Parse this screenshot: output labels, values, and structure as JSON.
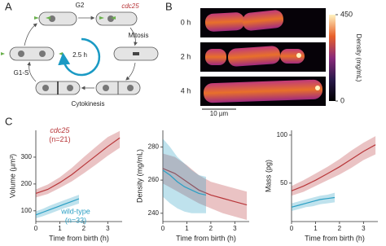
{
  "panel_labels": [
    "A",
    "B",
    "C"
  ],
  "cycle_diagram": {
    "g2": "G2",
    "gene": "cdc25",
    "mitosis": "Mitosis",
    "period": "2.5 h",
    "g1s": "G1-S",
    "cytokinesis": "Cytokinesis"
  },
  "images": {
    "times": [
      "0 h",
      "2 h",
      "4 h"
    ],
    "scale_bar": "10 µm",
    "colorbar": {
      "label": "Density (mg/mL)",
      "lim": [
        0,
        450
      ],
      "ticks": [
        0,
        450
      ]
    }
  },
  "chart_data": [
    {
      "type": "line",
      "ylabel": "Volume (µm³)",
      "xlabel": "Time from birth (h)",
      "xlim": [
        0,
        3.6
      ],
      "xticks": [
        0,
        1,
        2,
        3
      ],
      "ylim": [
        60,
        400
      ],
      "yticks": [
        100,
        200,
        300
      ],
      "series": [
        {
          "name": "cdc25",
          "annotation": "(n=21)",
          "color": "#b8373a",
          "x": [
            0,
            0.5,
            1,
            1.5,
            2,
            2.5,
            3,
            3.5
          ],
          "values": [
            165,
            180,
            205,
            235,
            270,
            305,
            340,
            372
          ],
          "lower": [
            150,
            163,
            185,
            210,
            240,
            272,
            305,
            335
          ],
          "upper": [
            180,
            198,
            225,
            260,
            300,
            338,
            375,
            398
          ]
        },
        {
          "name": "wild-type",
          "annotation": "(n=33)",
          "color": "#2a9fc4",
          "x": [
            0,
            0.3,
            0.6,
            0.9,
            1.2,
            1.5,
            1.8
          ],
          "values": [
            85,
            95,
            105,
            115,
            125,
            135,
            145
          ],
          "lower": [
            72,
            80,
            90,
            100,
            110,
            118,
            127
          ],
          "upper": [
            98,
            108,
            120,
            130,
            140,
            150,
            160
          ]
        }
      ]
    },
    {
      "type": "line",
      "ylabel": "Density (mg/mL)",
      "xlabel": "Time from birth (h)",
      "xlim": [
        0,
        3.6
      ],
      "xticks": [
        0,
        1,
        2,
        3
      ],
      "ylim": [
        235,
        290
      ],
      "yticks": [
        240,
        260,
        280
      ],
      "series": [
        {
          "color": "#b8373a",
          "x": [
            0,
            0.5,
            1,
            1.5,
            2,
            2.5,
            3,
            3.5
          ],
          "values": [
            267,
            264,
            259,
            254,
            251,
            249,
            247,
            245
          ],
          "lower": [
            258,
            254,
            250,
            246,
            243,
            240,
            238,
            236
          ],
          "upper": [
            276,
            274,
            269,
            263,
            259,
            257,
            255,
            253
          ]
        },
        {
          "color": "#2a9fc4",
          "x": [
            0,
            0.3,
            0.6,
            0.9,
            1.2,
            1.5,
            1.8
          ],
          "values": [
            266,
            263,
            259,
            256,
            254,
            252,
            251
          ],
          "lower": [
            250,
            246,
            243,
            241,
            240,
            240,
            240
          ],
          "upper": [
            285,
            280,
            274,
            270,
            266,
            263,
            262
          ]
        }
      ]
    },
    {
      "type": "line",
      "ylabel": "Mass (pg)",
      "xlabel": "Time from birth (h)",
      "xlim": [
        0,
        3.6
      ],
      "xticks": [
        0,
        1,
        2,
        3
      ],
      "ylim": [
        10,
        105
      ],
      "yticks": [
        50,
        100
      ],
      "series": [
        {
          "color": "#b8373a",
          "x": [
            0,
            0.5,
            1,
            1.5,
            2,
            2.5,
            3,
            3.5
          ],
          "values": [
            42,
            47,
            53,
            60,
            67,
            75,
            83,
            90
          ],
          "lower": [
            37,
            41,
            47,
            53,
            59,
            66,
            74,
            80
          ],
          "upper": [
            47,
            53,
            60,
            67,
            75,
            84,
            92,
            99
          ]
        },
        {
          "color": "#2a9fc4",
          "x": [
            0,
            0.3,
            0.6,
            0.9,
            1.2,
            1.5,
            1.8
          ],
          "values": [
            25,
            27,
            29,
            31,
            33,
            34,
            35
          ],
          "lower": [
            21,
            23,
            25,
            26,
            28,
            29,
            30
          ],
          "upper": [
            29,
            31,
            33,
            35,
            37,
            38,
            40
          ]
        }
      ]
    }
  ]
}
